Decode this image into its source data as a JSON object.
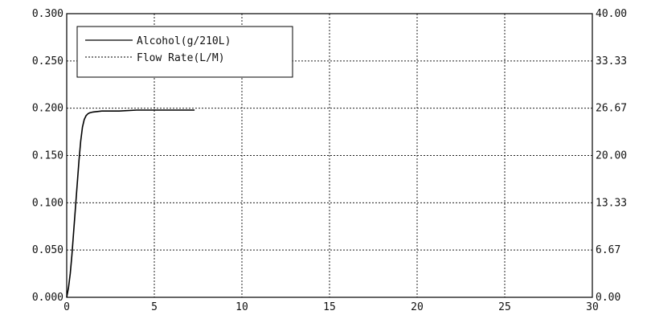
{
  "chart_data": {
    "type": "line",
    "title": "",
    "xlabel": "",
    "ylabel": "",
    "xlim": [
      0,
      30
    ],
    "ylim_left": [
      0,
      0.3
    ],
    "ylim_right": [
      0,
      40
    ],
    "x_ticks": [
      "0",
      "5",
      "10",
      "15",
      "20",
      "25",
      "30"
    ],
    "y_left_ticks": [
      "0.000",
      "0.050",
      "0.100",
      "0.150",
      "0.200",
      "0.250",
      "0.300"
    ],
    "y_right_ticks": [
      "0.00",
      "6.67",
      "13.33",
      "20.00",
      "26.67",
      "33.33",
      "40.00"
    ],
    "grid": true,
    "legend_position": "top-left",
    "series": [
      {
        "name": "Alcohol(g/210L)",
        "axis": "left",
        "color": "#000000",
        "style": "solid",
        "x": [
          0,
          0.1,
          0.2,
          0.3,
          0.4,
          0.5,
          0.6,
          0.7,
          0.8,
          0.9,
          1.0,
          1.1,
          1.2,
          1.3,
          1.5,
          2.0,
          3.0,
          4.0,
          5.0,
          6.0,
          7.3
        ],
        "y": [
          0,
          0.01,
          0.025,
          0.045,
          0.07,
          0.095,
          0.12,
          0.145,
          0.165,
          0.18,
          0.188,
          0.192,
          0.194,
          0.195,
          0.196,
          0.197,
          0.197,
          0.198,
          0.198,
          0.198,
          0.198
        ]
      },
      {
        "name": "Flow Rate(L/M)",
        "axis": "right",
        "color": "#000000",
        "style": "dotted",
        "x": [],
        "y": []
      }
    ]
  }
}
